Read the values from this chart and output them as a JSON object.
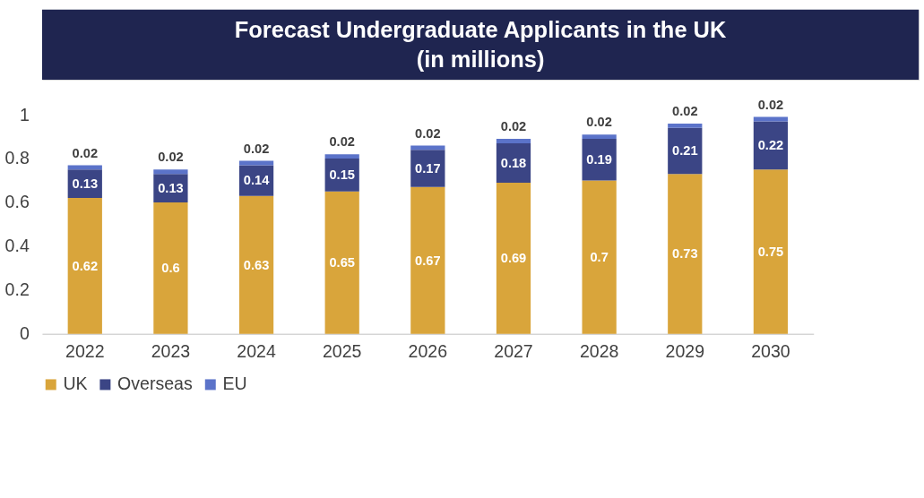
{
  "chart_data": {
    "type": "bar",
    "title": "Forecast Undergraduate Applicants in the UK",
    "subtitle": "(in millions)",
    "categories": [
      "2022",
      "2023",
      "2024",
      "2025",
      "2026",
      "2027",
      "2028",
      "2029",
      "2030"
    ],
    "series": [
      {
        "name": "UK",
        "color": "#d9a53b",
        "values": [
          0.62,
          0.6,
          0.63,
          0.65,
          0.67,
          0.69,
          0.7,
          0.73,
          0.75
        ]
      },
      {
        "name": "Overseas",
        "color": "#3b4585",
        "values": [
          0.13,
          0.13,
          0.14,
          0.15,
          0.17,
          0.18,
          0.19,
          0.21,
          0.22
        ]
      },
      {
        "name": "EU",
        "color": "#5b73c9",
        "values": [
          0.02,
          0.02,
          0.02,
          0.02,
          0.02,
          0.02,
          0.02,
          0.02,
          0.02
        ]
      }
    ],
    "stacked": true,
    "ylim": [
      0,
      1
    ],
    "yticks": [
      0,
      0.2,
      0.4,
      0.6,
      0.8,
      1
    ],
    "data_labels": true,
    "legend": "bottom"
  }
}
